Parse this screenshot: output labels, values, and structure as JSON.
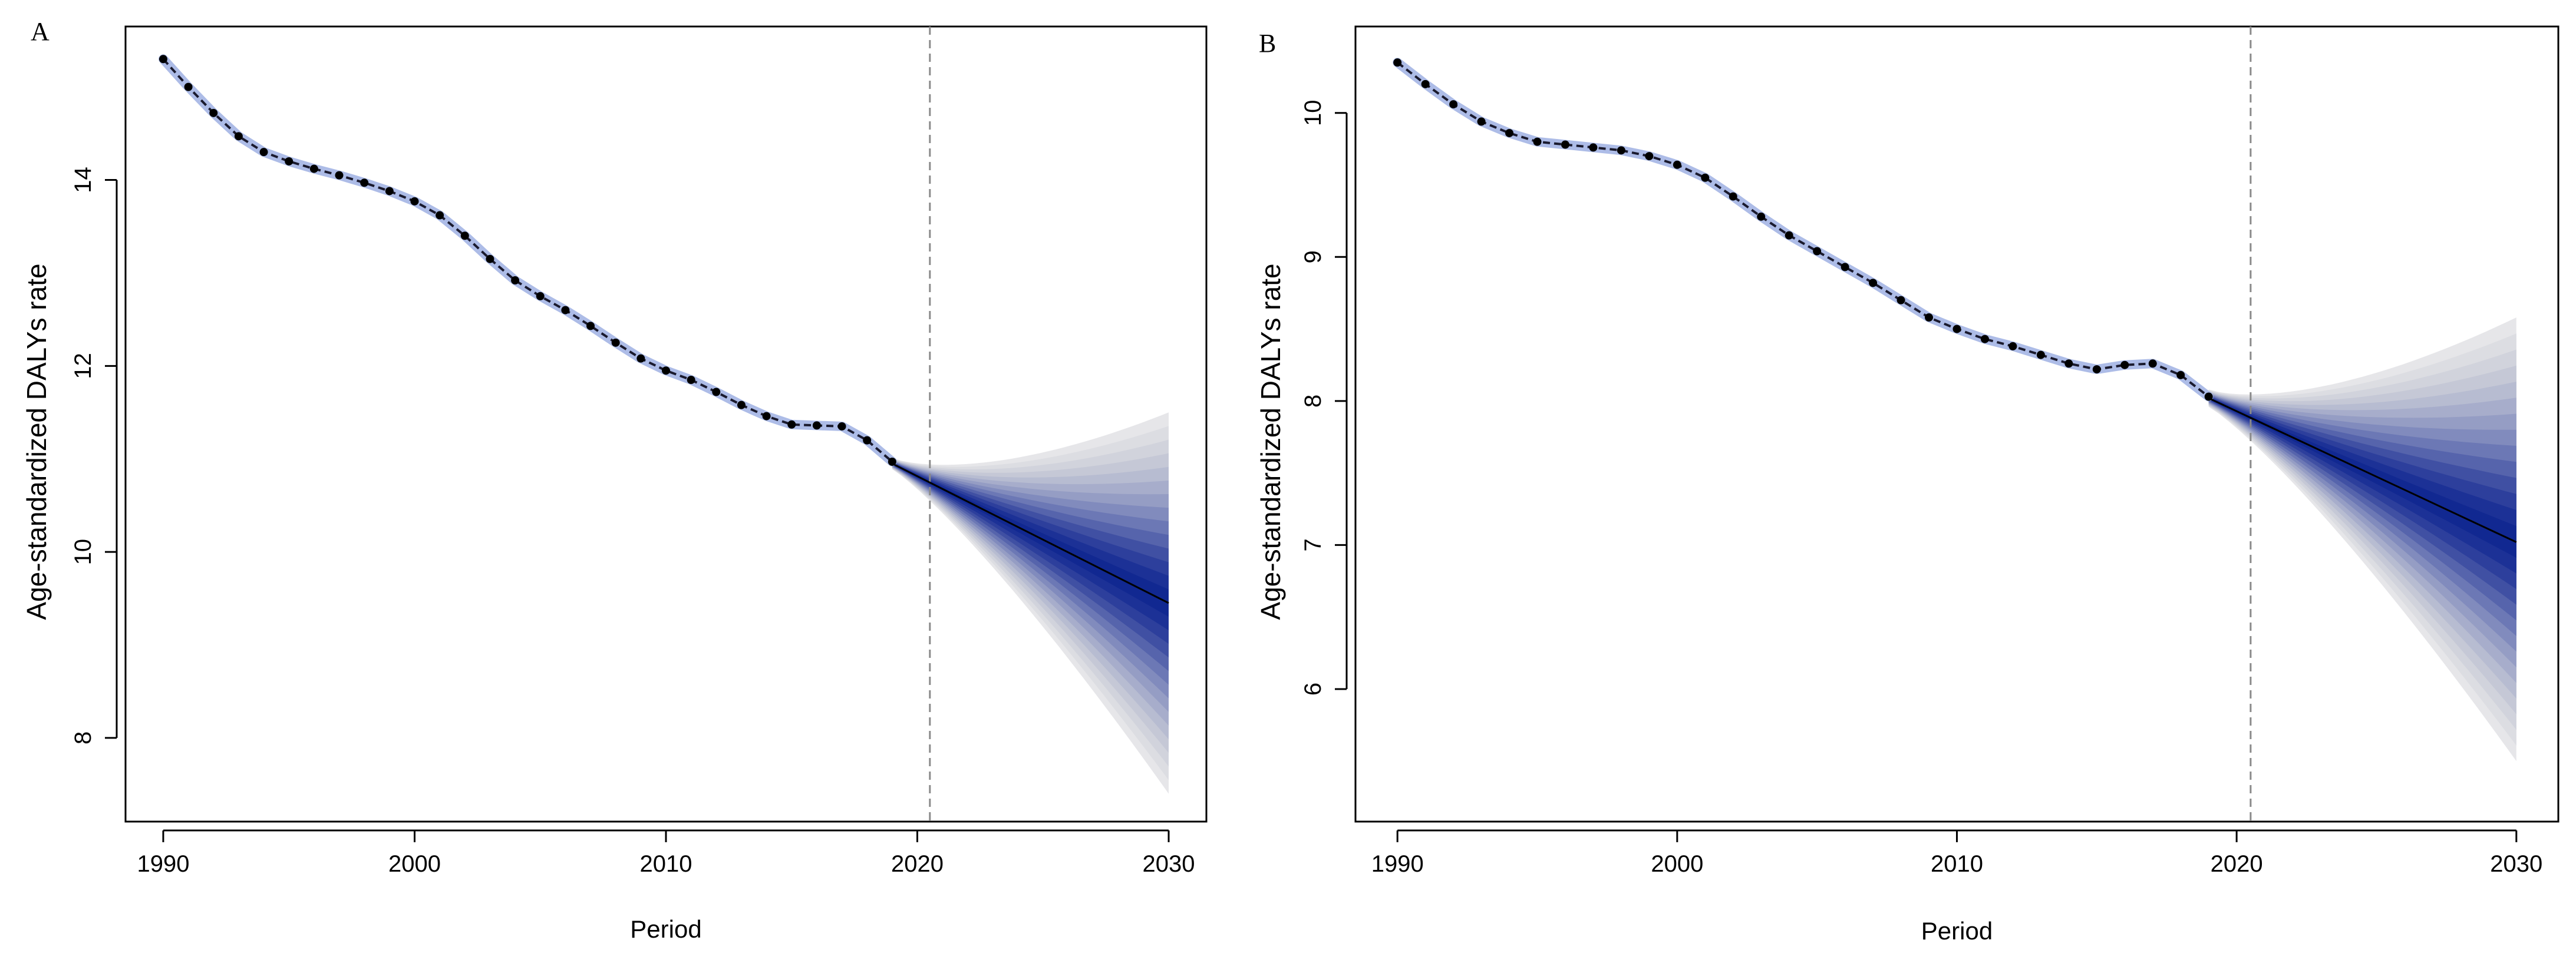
{
  "chart_data": [
    {
      "type": "line",
      "panel_label": "A",
      "title": "",
      "xlabel": "Period",
      "ylabel": "Age-standardized DALYs rate",
      "xlim": [
        1988.5,
        2031.5
      ],
      "ylim": [
        7.1,
        15.65
      ],
      "xticks": [
        1990,
        2000,
        2010,
        2020,
        2030
      ],
      "yticks": [
        8,
        10,
        12,
        14
      ],
      "grid": false,
      "cutoff_x": 2020.5,
      "observed": {
        "x": [
          1990,
          1991,
          1992,
          1993,
          1994,
          1995,
          1996,
          1997,
          1998,
          1999,
          2000,
          2001,
          2002,
          2003,
          2004,
          2005,
          2006,
          2007,
          2008,
          2009,
          2010,
          2011,
          2012,
          2013,
          2014,
          2015,
          2016,
          2017,
          2018,
          2019
        ],
        "y": [
          15.3,
          15.0,
          14.72,
          14.47,
          14.3,
          14.2,
          14.12,
          14.05,
          13.97,
          13.88,
          13.77,
          13.62,
          13.4,
          13.15,
          12.92,
          12.75,
          12.6,
          12.43,
          12.25,
          12.08,
          11.95,
          11.85,
          11.72,
          11.58,
          11.46,
          11.37,
          11.36,
          11.35,
          11.2,
          10.97
        ]
      },
      "forecast": {
        "x": [
          2019,
          2030
        ],
        "mean": [
          10.95,
          9.45
        ],
        "upper_2030": 11.5,
        "lower_2030": 7.4
      }
    },
    {
      "type": "line",
      "panel_label": "B",
      "title": "",
      "xlabel": "Period",
      "ylabel": "Age-standardized DALYs rate",
      "xlim": [
        1988.5,
        2031.5
      ],
      "ylim": [
        5.08,
        10.6
      ],
      "xticks": [
        1990,
        2000,
        2010,
        2020,
        2030
      ],
      "yticks": [
        6,
        7,
        8,
        9,
        10
      ],
      "grid": false,
      "cutoff_x": 2020.5,
      "observed": {
        "x": [
          1990,
          1991,
          1992,
          1993,
          1994,
          1995,
          1996,
          1997,
          1998,
          1999,
          2000,
          2001,
          2002,
          2003,
          2004,
          2005,
          2006,
          2007,
          2008,
          2009,
          2010,
          2011,
          2012,
          2013,
          2014,
          2015,
          2016,
          2017,
          2018,
          2019
        ],
        "y": [
          10.35,
          10.2,
          10.06,
          9.94,
          9.86,
          9.8,
          9.78,
          9.76,
          9.74,
          9.7,
          9.64,
          9.55,
          9.42,
          9.28,
          9.15,
          9.04,
          8.93,
          8.82,
          8.7,
          8.58,
          8.5,
          8.43,
          8.38,
          8.32,
          8.26,
          8.22,
          8.25,
          8.26,
          8.18,
          8.03
        ]
      },
      "forecast": {
        "x": [
          2019,
          2030
        ],
        "mean": [
          8.02,
          7.02
        ],
        "upper_2030": 8.58,
        "lower_2030": 5.5
      }
    }
  ]
}
